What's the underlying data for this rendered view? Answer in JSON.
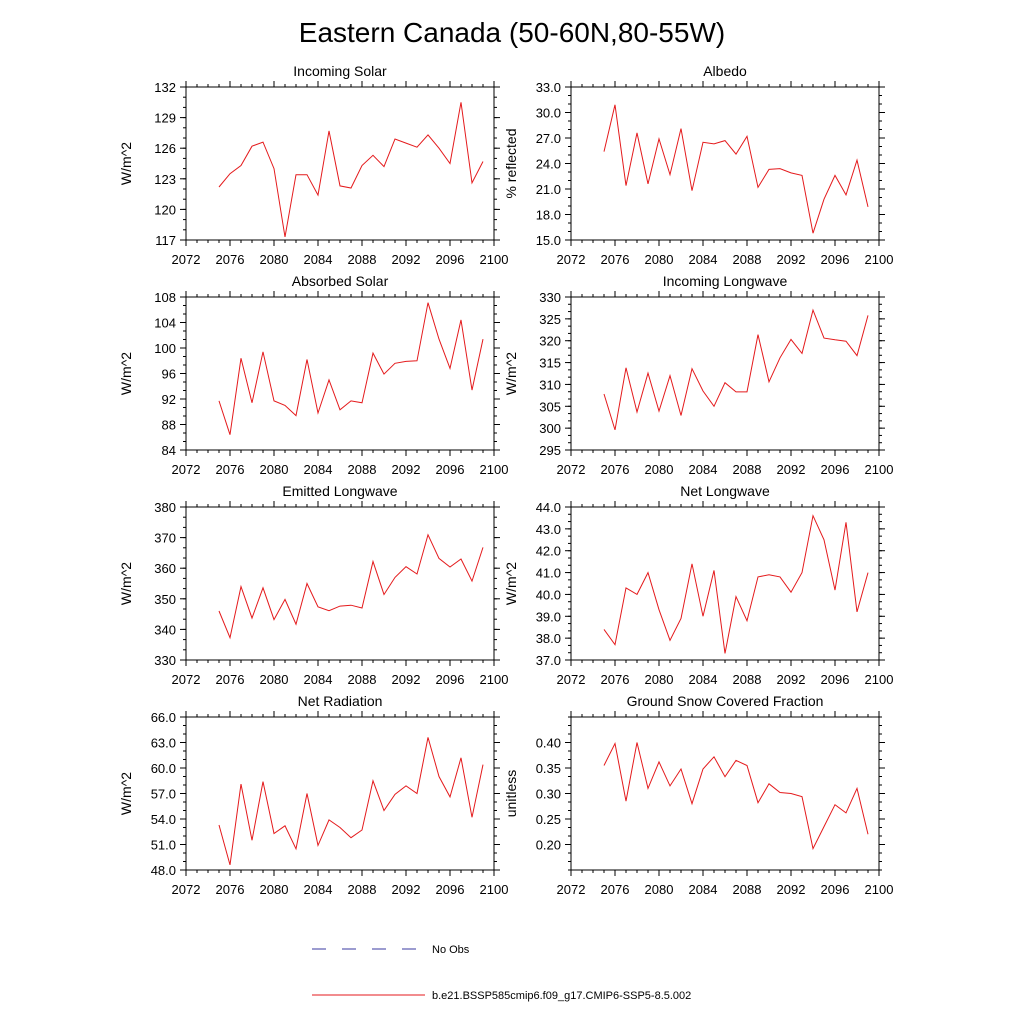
{
  "figure": {
    "title": "Eastern Canada (50-60N,80-55W)",
    "legend": {
      "obs_label": "No Obs",
      "model_label": "b.e21.BSSP585cmip6.f09_g17.CMIP6-SSP5-8.5.002",
      "obs_color": "#3a3aa0",
      "model_color": "#e41a1c"
    }
  },
  "chart_data": [
    {
      "type": "line",
      "title": "Incoming Solar",
      "ylabel": "W/m^2",
      "xlim": [
        2072,
        2100
      ],
      "ylim": [
        117,
        132
      ],
      "xticks": [
        "2072",
        "2076",
        "2080",
        "2084",
        "2088",
        "2092",
        "2096",
        "2100"
      ],
      "yticks": [
        "117",
        "120",
        "123",
        "126",
        "129",
        "132"
      ],
      "x": [
        2075,
        2076,
        2077,
        2078,
        2079,
        2080,
        2081,
        2082,
        2083,
        2084,
        2085,
        2086,
        2087,
        2088,
        2089,
        2090,
        2091,
        2092,
        2093,
        2094,
        2095,
        2096,
        2097,
        2098,
        2099
      ],
      "series": [
        {
          "values": [
            122.2,
            123.5,
            124.3,
            126.2,
            126.6,
            124.0,
            117.3,
            123.4,
            123.4,
            121.4,
            127.7,
            122.3,
            122.1,
            124.3,
            125.3,
            124.2,
            126.9,
            126.5,
            126.1,
            127.3,
            126.0,
            124.5,
            130.5,
            122.6,
            124.7
          ]
        }
      ]
    },
    {
      "type": "line",
      "title": "Albedo",
      "ylabel": "% reflected",
      "xlim": [
        2072,
        2100
      ],
      "ylim": [
        15.0,
        33.0
      ],
      "xticks": [
        "2072",
        "2076",
        "2080",
        "2084",
        "2088",
        "2092",
        "2096",
        "2100"
      ],
      "yticks": [
        "15.0",
        "18.0",
        "21.0",
        "24.0",
        "27.0",
        "30.0",
        "33.0"
      ],
      "x": [
        2075,
        2076,
        2077,
        2078,
        2079,
        2080,
        2081,
        2082,
        2083,
        2084,
        2085,
        2086,
        2087,
        2088,
        2089,
        2090,
        2091,
        2092,
        2093,
        2094,
        2095,
        2096,
        2097,
        2098,
        2099
      ],
      "series": [
        {
          "values": [
            25.4,
            30.9,
            21.4,
            27.6,
            21.6,
            26.9,
            22.7,
            28.1,
            20.8,
            26.5,
            26.3,
            26.7,
            25.1,
            27.2,
            21.2,
            23.3,
            23.4,
            22.9,
            22.6,
            15.8,
            19.8,
            22.6,
            20.3,
            24.4,
            18.9
          ]
        }
      ]
    },
    {
      "type": "line",
      "title": "Absorbed Solar",
      "ylabel": "W/m^2",
      "xlim": [
        2072,
        2100
      ],
      "ylim": [
        84,
        108
      ],
      "xticks": [
        "2072",
        "2076",
        "2080",
        "2084",
        "2088",
        "2092",
        "2096",
        "2100"
      ],
      "yticks": [
        "84",
        "88",
        "92",
        "96",
        "100",
        "104",
        "108"
      ],
      "x": [
        2075,
        2076,
        2077,
        2078,
        2079,
        2080,
        2081,
        2082,
        2083,
        2084,
        2085,
        2086,
        2087,
        2088,
        2089,
        2090,
        2091,
        2092,
        2093,
        2094,
        2095,
        2096,
        2097,
        2098,
        2099
      ],
      "series": [
        {
          "values": [
            91.7,
            86.4,
            98.4,
            91.4,
            99.4,
            91.7,
            91.0,
            89.4,
            98.2,
            89.8,
            95.0,
            90.3,
            91.7,
            91.4,
            99.2,
            95.9,
            97.6,
            97.9,
            98.0,
            107.1,
            101.4,
            96.8,
            104.4,
            93.4,
            101.4
          ]
        }
      ]
    },
    {
      "type": "line",
      "title": "Incoming Longwave",
      "ylabel": "W/m^2",
      "xlim": [
        2072,
        2100
      ],
      "ylim": [
        295,
        330
      ],
      "xticks": [
        "2072",
        "2076",
        "2080",
        "2084",
        "2088",
        "2092",
        "2096",
        "2100"
      ],
      "yticks": [
        "295",
        "300",
        "305",
        "310",
        "315",
        "320",
        "325",
        "330"
      ],
      "x": [
        2075,
        2076,
        2077,
        2078,
        2079,
        2080,
        2081,
        2082,
        2083,
        2084,
        2085,
        2086,
        2087,
        2088,
        2089,
        2090,
        2091,
        2092,
        2093,
        2094,
        2095,
        2096,
        2097,
        2098,
        2099
      ],
      "series": [
        {
          "values": [
            307.8,
            299.6,
            313.8,
            303.7,
            312.6,
            303.9,
            312.0,
            302.9,
            313.6,
            308.5,
            305.0,
            310.4,
            308.3,
            308.3,
            321.4,
            310.6,
            316.1,
            320.3,
            317.1,
            327.0,
            320.6,
            320.2,
            319.9,
            316.6,
            325.8
          ]
        }
      ]
    },
    {
      "type": "line",
      "title": "Emitted Longwave",
      "ylabel": "W/m^2",
      "xlim": [
        2072,
        2100
      ],
      "ylim": [
        330,
        380
      ],
      "xticks": [
        "2072",
        "2076",
        "2080",
        "2084",
        "2088",
        "2092",
        "2096",
        "2100"
      ],
      "yticks": [
        "330",
        "340",
        "350",
        "360",
        "370",
        "380"
      ],
      "x": [
        2075,
        2076,
        2077,
        2078,
        2079,
        2080,
        2081,
        2082,
        2083,
        2084,
        2085,
        2086,
        2087,
        2088,
        2089,
        2090,
        2091,
        2092,
        2093,
        2094,
        2095,
        2096,
        2097,
        2098,
        2099
      ],
      "series": [
        {
          "values": [
            346.0,
            337.3,
            354.0,
            343.7,
            353.6,
            343.2,
            349.8,
            341.7,
            355.0,
            347.4,
            346.1,
            347.6,
            347.9,
            347.0,
            362.2,
            351.4,
            357.0,
            360.5,
            358.1,
            370.9,
            363.2,
            360.4,
            363.0,
            355.8,
            366.8
          ]
        }
      ]
    },
    {
      "type": "line",
      "title": "Net Longwave",
      "ylabel": "W/m^2",
      "xlim": [
        2072,
        2100
      ],
      "ylim": [
        37.0,
        44.0
      ],
      "xticks": [
        "2072",
        "2076",
        "2080",
        "2084",
        "2088",
        "2092",
        "2096",
        "2100"
      ],
      "yticks": [
        "37.0",
        "38.0",
        "39.0",
        "40.0",
        "41.0",
        "42.0",
        "43.0",
        "44.0"
      ],
      "x": [
        2075,
        2076,
        2077,
        2078,
        2079,
        2080,
        2081,
        2082,
        2083,
        2084,
        2085,
        2086,
        2087,
        2088,
        2089,
        2090,
        2091,
        2092,
        2093,
        2094,
        2095,
        2096,
        2097,
        2098,
        2099
      ],
      "series": [
        {
          "values": [
            38.4,
            37.7,
            40.3,
            40.0,
            41.0,
            39.3,
            37.9,
            38.9,
            41.4,
            39.0,
            41.1,
            37.3,
            39.9,
            38.8,
            40.8,
            40.9,
            40.8,
            40.1,
            41.0,
            43.6,
            42.5,
            40.2,
            43.3,
            39.2,
            41.0
          ]
        }
      ]
    },
    {
      "type": "line",
      "title": "Net Radiation",
      "ylabel": "W/m^2",
      "xlim": [
        2072,
        2100
      ],
      "ylim": [
        48.0,
        66.0
      ],
      "xticks": [
        "2072",
        "2076",
        "2080",
        "2084",
        "2088",
        "2092",
        "2096",
        "2100"
      ],
      "yticks": [
        "48.0",
        "51.0",
        "54.0",
        "57.0",
        "60.0",
        "63.0",
        "66.0"
      ],
      "x": [
        2075,
        2076,
        2077,
        2078,
        2079,
        2080,
        2081,
        2082,
        2083,
        2084,
        2085,
        2086,
        2087,
        2088,
        2089,
        2090,
        2091,
        2092,
        2093,
        2094,
        2095,
        2096,
        2097,
        2098,
        2099
      ],
      "series": [
        {
          "values": [
            53.3,
            48.6,
            58.1,
            51.5,
            58.4,
            52.3,
            53.2,
            50.5,
            57.0,
            50.9,
            53.9,
            53.0,
            51.8,
            52.7,
            58.5,
            55.0,
            56.9,
            57.9,
            57.0,
            63.6,
            59.0,
            56.6,
            61.2,
            54.2,
            60.4
          ]
        }
      ]
    },
    {
      "type": "line",
      "title": "Ground Snow Covered Fraction",
      "ylabel": "unitless",
      "xlim": [
        2072,
        2100
      ],
      "ylim": [
        0.15,
        0.45
      ],
      "xticks": [
        "2072",
        "2076",
        "2080",
        "2084",
        "2088",
        "2092",
        "2096",
        "2100"
      ],
      "yticks": [
        "0.20",
        "0.25",
        "0.30",
        "0.35",
        "0.40"
      ],
      "x": [
        2075,
        2076,
        2077,
        2078,
        2079,
        2080,
        2081,
        2082,
        2083,
        2084,
        2085,
        2086,
        2087,
        2088,
        2089,
        2090,
        2091,
        2092,
        2093,
        2094,
        2095,
        2096,
        2097,
        2098,
        2099
      ],
      "series": [
        {
          "values": [
            0.355,
            0.398,
            0.285,
            0.4,
            0.31,
            0.362,
            0.315,
            0.348,
            0.28,
            0.348,
            0.372,
            0.333,
            0.365,
            0.355,
            0.282,
            0.319,
            0.302,
            0.3,
            0.294,
            0.192,
            0.235,
            0.278,
            0.262,
            0.31,
            0.22
          ]
        }
      ]
    }
  ]
}
